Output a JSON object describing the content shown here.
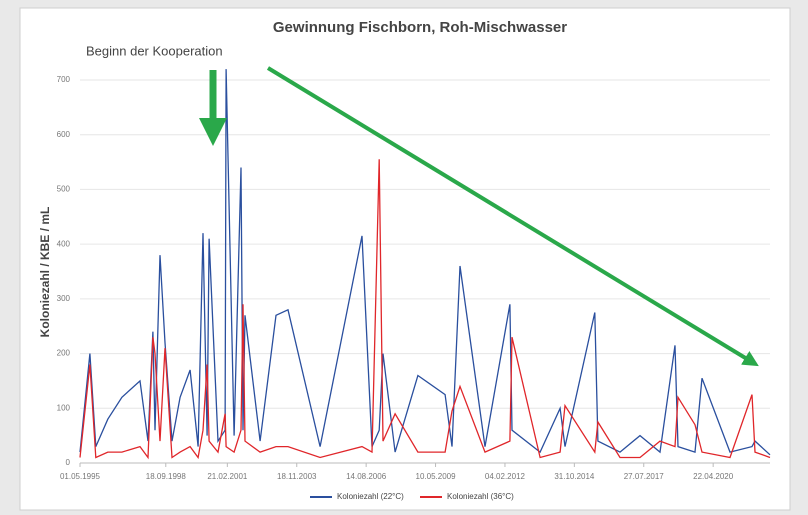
{
  "chart_data": {
    "type": "line",
    "title": "Gewinnung Fischborn, Roh-Mischwasser",
    "y_label": "Koloniezahl / KBE / mL",
    "annotation": "Beginn der Kooperation",
    "x": [
      "01.05.1995",
      "20.09.1995",
      "15.12.1995",
      "05.06.1996",
      "25.12.1996",
      "12.09.1997",
      "05.01.1998",
      "17.03.1998",
      "15.04.1998",
      "27.06.1998",
      "07.09.1998",
      "16.12.1998",
      "12.04.1999",
      "03.09.1999",
      "28.12.1999",
      "07.03.2000",
      "05.05.2000",
      "03.06.2000",
      "10.10.2000",
      "20.01.2001",
      "03.02.2001",
      "30.05.2001",
      "06.09.2001",
      "05.10.2001",
      "03.11.2001",
      "08.06.2002",
      "23.01.2003",
      "15.07.2003",
      "20.10.2004",
      "15.06.2006",
      "06.11.2006",
      "18.02.2007",
      "14.04.2007",
      "05.10.2007",
      "28.08.2008",
      "24.09.2009",
      "02.01.2010",
      "28.04.2010",
      "22.04.2011",
      "16.04.2012",
      "15.05.2012",
      "24.06.2013",
      "08.04.2014",
      "18.06.2014",
      "22.08.2015",
      "05.10.2015",
      "18.08.2016",
      "03.06.2017",
      "18.03.2018",
      "20.10.2018",
      "03.12.2018",
      "05.08.2019",
      "13.11.2019",
      "20.12.2020",
      "03.11.2021",
      "16.12.2021",
      "20.07.2022"
    ],
    "series": [
      {
        "name": "Koloniezahl (22°C)",
        "color": "#2a4f9e",
        "values": [
          20,
          200,
          30,
          80,
          120,
          150,
          40,
          240,
          60,
          380,
          220,
          40,
          120,
          170,
          30,
          420,
          50,
          410,
          40,
          60,
          720,
          50,
          540,
          60,
          270,
          40,
          270,
          280,
          30,
          415,
          30,
          60,
          200,
          20,
          160,
          125,
          30,
          360,
          30,
          290,
          60,
          20,
          100,
          30,
          275,
          40,
          20,
          50,
          20,
          215,
          30,
          20,
          155,
          20,
          30,
          40,
          15
        ]
      },
      {
        "name": "Koloniezahl (36°C)",
        "color": "#e0262a",
        "values": [
          10,
          180,
          10,
          20,
          20,
          30,
          10,
          230,
          200,
          40,
          210,
          10,
          20,
          30,
          10,
          60,
          180,
          40,
          20,
          90,
          30,
          20,
          60,
          290,
          40,
          20,
          30,
          30,
          10,
          30,
          20,
          555,
          40,
          90,
          20,
          20,
          95,
          140,
          20,
          40,
          230,
          10,
          20,
          105,
          20,
          75,
          10,
          10,
          40,
          30,
          120,
          70,
          20,
          10,
          125,
          20,
          10
        ]
      }
    ],
    "xlim": [
      "01.05.1995",
      "20.07.2022"
    ],
    "xticks": [
      "01.05.1995",
      "18.09.1998",
      "21.02.2001",
      "18.11.2003",
      "14.08.2006",
      "10.05.2009",
      "04.02.2012",
      "31.10.2014",
      "27.07.2017",
      "22.04.2020"
    ],
    "ylim": [
      0,
      700
    ],
    "yticks": [
      0,
      100,
      200,
      300,
      400,
      500,
      600,
      700
    ],
    "grid": true,
    "legend": "bottom"
  }
}
